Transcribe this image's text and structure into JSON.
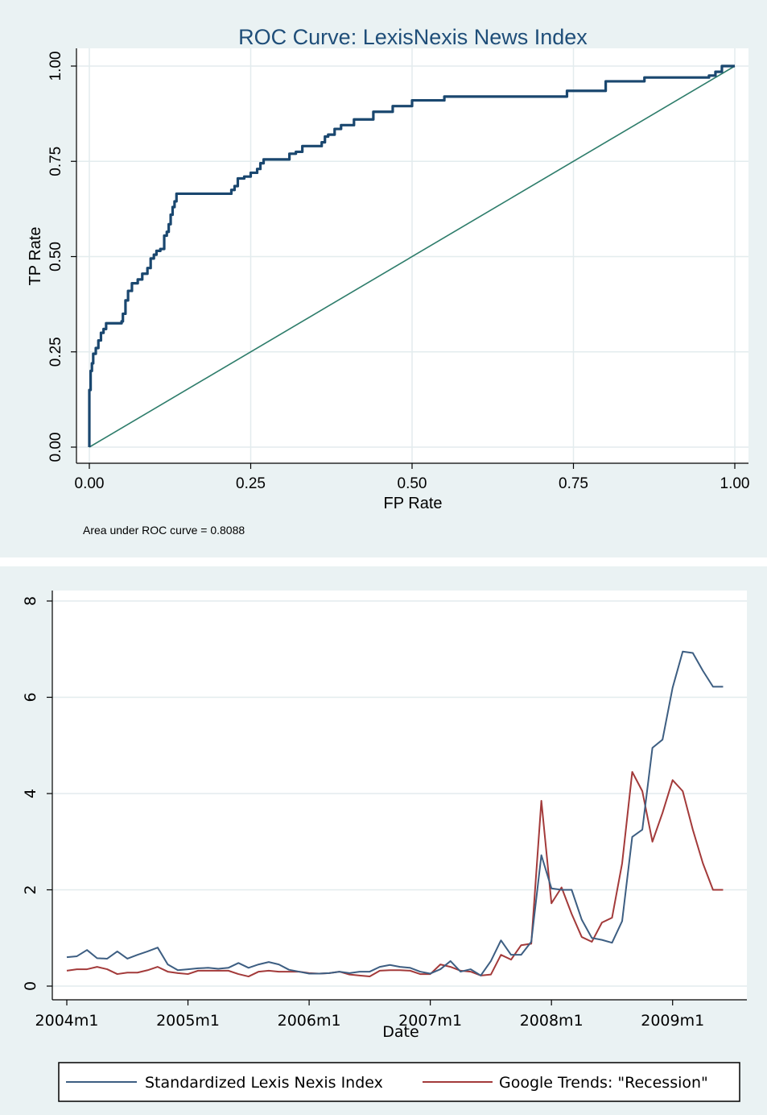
{
  "chart_data": [
    {
      "type": "line",
      "title": "ROC Curve: LexisNexis News Index",
      "xlabel": "FP Rate",
      "ylabel": "TP Rate",
      "xlim": [
        0,
        1
      ],
      "ylim": [
        0,
        1
      ],
      "xticks": [
        "0.00",
        "0.25",
        "0.50",
        "0.75",
        "1.00"
      ],
      "yticks": [
        "0.00",
        "0.25",
        "0.50",
        "0.75",
        "1.00"
      ],
      "grid": true,
      "note": "Area under ROC curve = 0.8088",
      "colors": {
        "roc": "#1a476f",
        "reference": "#2e7d6b"
      },
      "series": [
        {
          "x": [
            0,
            0,
            0.002,
            0.004,
            0.006,
            0.01,
            0.014,
            0.018,
            0.022,
            0.026,
            0.03,
            0.035,
            0.05,
            0.052,
            0.056,
            0.06,
            0.066,
            0.075,
            0.082,
            0.09,
            0.095,
            0.1,
            0.104,
            0.11,
            0.116,
            0.12,
            0.123,
            0.126,
            0.129,
            0.132,
            0.135,
            0.19,
            0.22,
            0.225,
            0.23,
            0.24,
            0.25,
            0.26,
            0.265,
            0.27,
            0.3,
            0.31,
            0.32,
            0.33,
            0.355,
            0.36,
            0.365,
            0.37,
            0.38,
            0.39,
            0.41,
            0.435,
            0.44,
            0.47,
            0.5,
            0.55,
            0.74,
            0.8,
            0.86,
            0.96,
            0.97,
            0.98,
            1
          ],
          "y": [
            0,
            0.15,
            0.2,
            0.22,
            0.245,
            0.26,
            0.28,
            0.3,
            0.31,
            0.325,
            0.325,
            0.325,
            0.33,
            0.35,
            0.385,
            0.41,
            0.43,
            0.44,
            0.455,
            0.47,
            0.495,
            0.505,
            0.515,
            0.52,
            0.555,
            0.565,
            0.585,
            0.61,
            0.63,
            0.645,
            0.665,
            0.665,
            0.675,
            0.685,
            0.705,
            0.71,
            0.72,
            0.73,
            0.745,
            0.755,
            0.755,
            0.77,
            0.775,
            0.79,
            0.79,
            0.8,
            0.815,
            0.82,
            0.835,
            0.845,
            0.86,
            0.86,
            0.88,
            0.895,
            0.91,
            0.92,
            0.935,
            0.96,
            0.97,
            0.975,
            0.985,
            1,
            1
          ]
        },
        {
          "x": [
            0,
            1
          ],
          "y": [
            0,
            1
          ]
        }
      ]
    },
    {
      "type": "line",
      "xlabel": "Date",
      "ylabel": "",
      "xlim": [
        2004.0,
        2009.5
      ],
      "ylim": [
        0,
        8
      ],
      "xticks": [
        "2004m1",
        "2005m1",
        "2006m1",
        "2007m1",
        "2008m1",
        "2009m1"
      ],
      "yticks": [
        "0",
        "2",
        "4",
        "6",
        "8"
      ],
      "grid": true,
      "legend": "bottom",
      "series": [
        {
          "name": "Standardized Lexis Nexis Index",
          "color": "#3d5e82",
          "x": [
            "2004m1",
            "2004m2",
            "2004m3",
            "2004m4",
            "2004m5",
            "2004m6",
            "2004m7",
            "2004m8",
            "2004m9",
            "2004m10",
            "2004m11",
            "2004m12",
            "2005m1",
            "2005m2",
            "2005m3",
            "2005m4",
            "2005m5",
            "2005m6",
            "2005m7",
            "2005m8",
            "2005m9",
            "2005m10",
            "2005m11",
            "2005m12",
            "2006m1",
            "2006m2",
            "2006m3",
            "2006m4",
            "2006m5",
            "2006m6",
            "2006m7",
            "2006m8",
            "2006m9",
            "2006m10",
            "2006m11",
            "2006m12",
            "2007m1",
            "2007m2",
            "2007m3",
            "2007m4",
            "2007m5",
            "2007m6",
            "2007m7",
            "2007m8",
            "2007m9",
            "2007m10",
            "2007m11",
            "2007m12",
            "2008m1",
            "2008m2",
            "2008m3",
            "2008m4",
            "2008m5",
            "2008m6",
            "2008m7",
            "2008m8",
            "2008m9",
            "2008m10",
            "2008m11",
            "2008m12",
            "2009m1",
            "2009m2",
            "2009m3",
            "2009m4",
            "2009m5",
            "2009m6"
          ],
          "y": [
            0.6,
            0.62,
            0.75,
            0.58,
            0.57,
            0.72,
            0.57,
            0.65,
            0.72,
            0.8,
            0.45,
            0.33,
            0.35,
            0.37,
            0.38,
            0.36,
            0.38,
            0.48,
            0.38,
            0.45,
            0.5,
            0.45,
            0.34,
            0.3,
            0.26,
            0.26,
            0.27,
            0.3,
            0.27,
            0.3,
            0.3,
            0.4,
            0.44,
            0.4,
            0.38,
            0.3,
            0.26,
            0.35,
            0.52,
            0.3,
            0.35,
            0.22,
            0.52,
            0.95,
            0.65,
            0.65,
            0.92,
            2.72,
            2.03,
            2.0,
            2.0,
            1.38,
            1.0,
            0.96,
            0.9,
            1.35,
            3.1,
            3.25,
            4.95,
            5.12,
            6.2,
            6.95,
            6.92,
            6.55,
            6.22,
            6.22
          ]
        },
        {
          "name": "Google Trends: \"Recession\"",
          "color": "#a33a3a",
          "x": [
            "2004m1",
            "2004m2",
            "2004m3",
            "2004m4",
            "2004m5",
            "2004m6",
            "2004m7",
            "2004m8",
            "2004m9",
            "2004m10",
            "2004m11",
            "2004m12",
            "2005m1",
            "2005m2",
            "2005m3",
            "2005m4",
            "2005m5",
            "2005m6",
            "2005m7",
            "2005m8",
            "2005m9",
            "2005m10",
            "2005m11",
            "2005m12",
            "2006m1",
            "2006m2",
            "2006m3",
            "2006m4",
            "2006m5",
            "2006m6",
            "2006m7",
            "2006m8",
            "2006m9",
            "2006m10",
            "2006m11",
            "2006m12",
            "2007m1",
            "2007m2",
            "2007m3",
            "2007m4",
            "2007m5",
            "2007m6",
            "2007m7",
            "2007m8",
            "2007m9",
            "2007m10",
            "2007m11",
            "2007m12",
            "2008m1",
            "2008m2",
            "2008m3",
            "2008m4",
            "2008m5",
            "2008m6",
            "2008m7",
            "2008m8",
            "2008m9",
            "2008m10",
            "2008m11",
            "2008m12",
            "2009m1",
            "2009m2",
            "2009m3",
            "2009m4",
            "2009m5",
            "2009m6"
          ],
          "y": [
            0.32,
            0.35,
            0.35,
            0.4,
            0.35,
            0.25,
            0.28,
            0.28,
            0.33,
            0.4,
            0.3,
            0.27,
            0.25,
            0.32,
            0.32,
            0.32,
            0.32,
            0.25,
            0.2,
            0.3,
            0.32,
            0.3,
            0.3,
            0.3,
            0.27,
            0.26,
            0.27,
            0.3,
            0.24,
            0.22,
            0.2,
            0.32,
            0.33,
            0.33,
            0.32,
            0.25,
            0.25,
            0.45,
            0.4,
            0.32,
            0.3,
            0.22,
            0.24,
            0.65,
            0.55,
            0.85,
            0.88,
            3.85,
            1.72,
            2.05,
            1.5,
            1.02,
            0.92,
            1.32,
            1.42,
            2.55,
            4.45,
            4.05,
            3.0,
            3.6,
            4.28,
            4.05,
            3.25,
            2.55,
            2.0,
            2.0
          ]
        }
      ]
    }
  ]
}
